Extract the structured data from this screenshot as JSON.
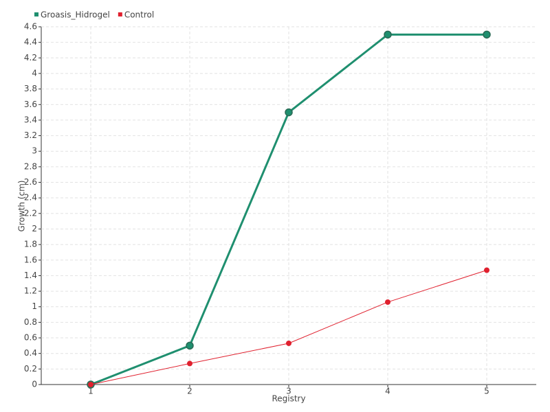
{
  "chart_data": {
    "type": "line",
    "x_label": "Registry",
    "y_label": "Growth (cm)",
    "categories": [
      "1",
      "2",
      "3",
      "4",
      "5"
    ],
    "series": [
      {
        "name": "Groasis_Hidrogel",
        "color": "#1f8f6f",
        "values": [
          0,
          0.5,
          3.5,
          4.5,
          4.5
        ]
      },
      {
        "name": "Control",
        "color": "#e0202e",
        "values": [
          0,
          0.27,
          0.53,
          1.06,
          1.47
        ]
      }
    ],
    "ylim": [
      0,
      4.6
    ],
    "yticks": [
      0,
      0.2,
      0.4,
      0.6,
      0.8,
      1,
      1.2,
      1.4,
      1.6,
      1.8,
      2,
      2.2,
      2.4,
      2.6,
      2.8,
      3,
      3.2,
      3.4,
      3.6,
      3.8,
      4,
      4.2,
      4.4,
      4.6
    ],
    "grid": true,
    "legend": "top-left"
  }
}
